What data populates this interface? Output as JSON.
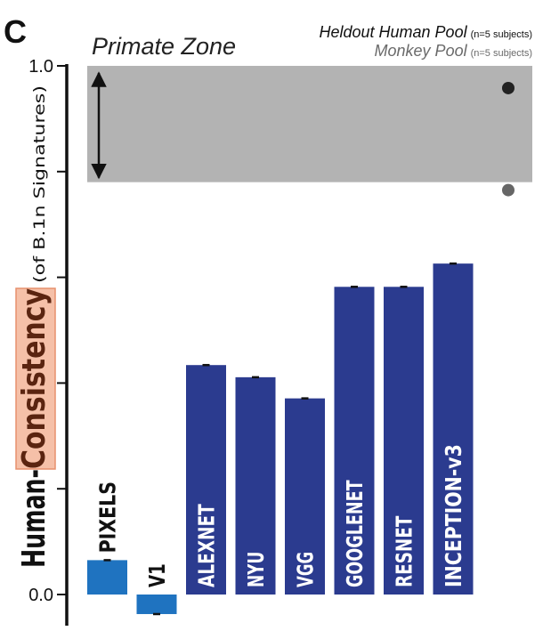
{
  "chart_data": {
    "type": "bar",
    "panel_label": "C",
    "zone_label": "Primate Zone",
    "ylabel": {
      "prefix": "Human-",
      "highlight": "Consistency",
      "suffix": "(of B.1n Signatures)"
    },
    "ylim": [
      -0.04,
      1.0
    ],
    "yticks": [
      0.0,
      0.2,
      0.4,
      0.6,
      0.8,
      1.0
    ],
    "ytick_labels": [
      "0.0",
      "",
      "",
      "",
      "",
      "1.0"
    ],
    "primate_zone": [
      0.78,
      1.0
    ],
    "categories": [
      "PIXELS",
      "V1",
      "ALEXNET",
      "NYU",
      "VGG",
      "GOOGLENET",
      "RESNET",
      "INCEPTION-v3"
    ],
    "values": [
      0.065,
      -0.037,
      0.434,
      0.411,
      0.371,
      0.582,
      0.582,
      0.626
    ],
    "bar_colors": [
      "#1f73c0",
      "#1f73c0",
      "#2b3b8f",
      "#2b3b8f",
      "#2b3b8f",
      "#2b3b8f",
      "#2b3b8f",
      "#2b3b8f"
    ],
    "legend": [
      {
        "name": "Heldout Human Pool",
        "note": "(n=5 subjects)",
        "value": 0.958,
        "color": "#222222"
      },
      {
        "name": "Monkey Pool",
        "note": "(n=5 subjects)",
        "value": 0.765,
        "color": "#666666"
      }
    ],
    "zone_color": "#b3b3b3"
  }
}
